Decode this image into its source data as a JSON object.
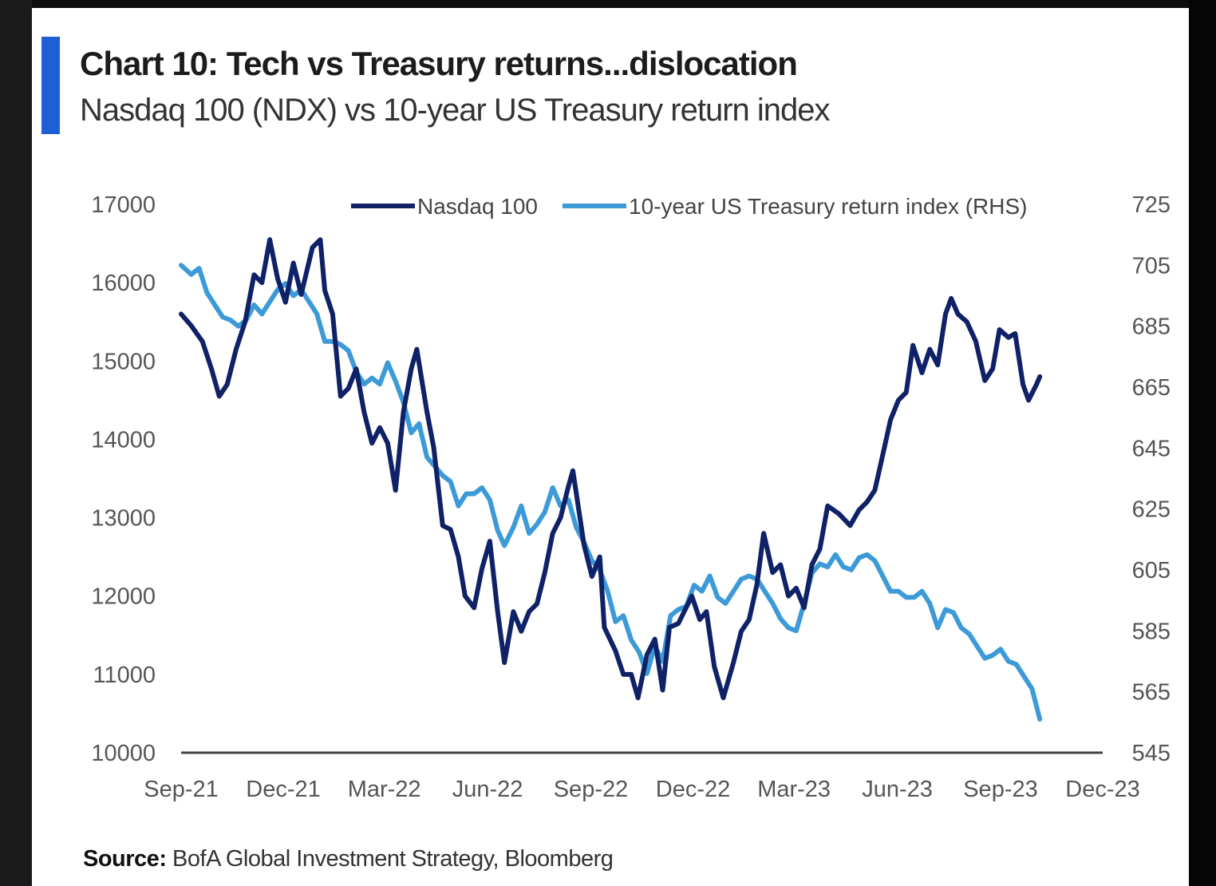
{
  "title": "Chart 10: Tech vs Treasury returns...dislocation",
  "subtitle": "Nasdaq 100 (NDX) vs 10-year US Treasury return index",
  "source_label": "Source:",
  "source_text": "BofA Global Investment Strategy, Bloomberg",
  "colors": {
    "nasdaq": "#0f2167",
    "treasury": "#3d9ad8",
    "accent": "#1f5fd6"
  },
  "chart_data": {
    "type": "line",
    "title": "Chart 10: Tech vs Treasury returns...dislocation",
    "subtitle": "Nasdaq 100 (NDX) vs 10-year US Treasury return index",
    "x_ticks": [
      "Sep-21",
      "Dec-21",
      "Mar-22",
      "Jun-22",
      "Sep-22",
      "Dec-22",
      "Mar-23",
      "Jun-23",
      "Sep-23",
      "Dec-23"
    ],
    "xlim": [
      "2021-09-01",
      "2023-12-01"
    ],
    "ylim_left": [
      10000,
      17000
    ],
    "yticks_left": [
      "17000",
      "16000",
      "15000",
      "14000",
      "13000",
      "12000",
      "11000",
      "10000"
    ],
    "ylim_right": [
      545,
      725
    ],
    "yticks_right": [
      "725",
      "705",
      "685",
      "665",
      "645",
      "625",
      "605",
      "585",
      "565",
      "545"
    ],
    "legend_position": "top-center",
    "series": [
      {
        "name": "Nasdaq 100",
        "axis": "left",
        "points": [
          [
            "2021-09-01",
            15600
          ],
          [
            "2021-09-10",
            15450
          ],
          [
            "2021-09-20",
            15250
          ],
          [
            "2021-09-28",
            14900
          ],
          [
            "2021-10-05",
            14550
          ],
          [
            "2021-10-12",
            14700
          ],
          [
            "2021-10-20",
            15150
          ],
          [
            "2021-10-28",
            15500
          ],
          [
            "2021-11-05",
            16100
          ],
          [
            "2021-11-12",
            16000
          ],
          [
            "2021-11-19",
            16550
          ],
          [
            "2021-11-26",
            16050
          ],
          [
            "2021-12-03",
            15750
          ],
          [
            "2021-12-10",
            16250
          ],
          [
            "2021-12-17",
            15850
          ],
          [
            "2021-12-27",
            16450
          ],
          [
            "2022-01-03",
            16550
          ],
          [
            "2022-01-07",
            15900
          ],
          [
            "2022-01-14",
            15600
          ],
          [
            "2022-01-21",
            14550
          ],
          [
            "2022-01-28",
            14650
          ],
          [
            "2022-02-04",
            14900
          ],
          [
            "2022-02-11",
            14350
          ],
          [
            "2022-02-18",
            13950
          ],
          [
            "2022-02-25",
            14150
          ],
          [
            "2022-03-04",
            13950
          ],
          [
            "2022-03-11",
            13350
          ],
          [
            "2022-03-18",
            14350
          ],
          [
            "2022-03-25",
            14900
          ],
          [
            "2022-03-30",
            15150
          ],
          [
            "2022-04-08",
            14350
          ],
          [
            "2022-04-14",
            13900
          ],
          [
            "2022-04-22",
            12900
          ],
          [
            "2022-04-29",
            12850
          ],
          [
            "2022-05-06",
            12500
          ],
          [
            "2022-05-12",
            12000
          ],
          [
            "2022-05-20",
            11850
          ],
          [
            "2022-05-27",
            12350
          ],
          [
            "2022-06-03",
            12700
          ],
          [
            "2022-06-10",
            11800
          ],
          [
            "2022-06-16",
            11150
          ],
          [
            "2022-06-24",
            11800
          ],
          [
            "2022-07-01",
            11550
          ],
          [
            "2022-07-08",
            11800
          ],
          [
            "2022-07-15",
            11900
          ],
          [
            "2022-07-22",
            12300
          ],
          [
            "2022-07-29",
            12800
          ],
          [
            "2022-08-05",
            13000
          ],
          [
            "2022-08-12",
            13400
          ],
          [
            "2022-08-16",
            13600
          ],
          [
            "2022-08-26",
            12650
          ],
          [
            "2022-09-02",
            12250
          ],
          [
            "2022-09-09",
            12500
          ],
          [
            "2022-09-13",
            11600
          ],
          [
            "2022-09-23",
            11300
          ],
          [
            "2022-09-30",
            11000
          ],
          [
            "2022-10-07",
            11000
          ],
          [
            "2022-10-13",
            10700
          ],
          [
            "2022-10-21",
            11250
          ],
          [
            "2022-10-28",
            11450
          ],
          [
            "2022-11-04",
            10800
          ],
          [
            "2022-11-10",
            11600
          ],
          [
            "2022-11-18",
            11650
          ],
          [
            "2022-11-30",
            12000
          ],
          [
            "2022-12-07",
            11700
          ],
          [
            "2022-12-13",
            11800
          ],
          [
            "2022-12-20",
            11100
          ],
          [
            "2022-12-28",
            10700
          ],
          [
            "2023-01-06",
            11150
          ],
          [
            "2023-01-13",
            11550
          ],
          [
            "2023-01-20",
            11700
          ],
          [
            "2023-01-27",
            12150
          ],
          [
            "2023-02-02",
            12800
          ],
          [
            "2023-02-10",
            12300
          ],
          [
            "2023-02-17",
            12400
          ],
          [
            "2023-02-24",
            12000
          ],
          [
            "2023-03-03",
            12100
          ],
          [
            "2023-03-10",
            11850
          ],
          [
            "2023-03-17",
            12400
          ],
          [
            "2023-03-24",
            12600
          ],
          [
            "2023-03-31",
            13150
          ],
          [
            "2023-04-10",
            13050
          ],
          [
            "2023-04-20",
            12900
          ],
          [
            "2023-04-28",
            13100
          ],
          [
            "2023-05-05",
            13200
          ],
          [
            "2023-05-12",
            13350
          ],
          [
            "2023-05-19",
            13800
          ],
          [
            "2023-05-26",
            14250
          ],
          [
            "2023-06-02",
            14500
          ],
          [
            "2023-06-09",
            14600
          ],
          [
            "2023-06-15",
            15200
          ],
          [
            "2023-06-23",
            14850
          ],
          [
            "2023-06-30",
            15150
          ],
          [
            "2023-07-07",
            14950
          ],
          [
            "2023-07-14",
            15600
          ],
          [
            "2023-07-19",
            15800
          ],
          [
            "2023-07-25",
            15600
          ],
          [
            "2023-08-02",
            15500
          ],
          [
            "2023-08-10",
            15250
          ],
          [
            "2023-08-18",
            14750
          ],
          [
            "2023-08-25",
            14900
          ],
          [
            "2023-08-31",
            15400
          ],
          [
            "2023-09-08",
            15300
          ],
          [
            "2023-09-14",
            15350
          ],
          [
            "2023-09-21",
            14700
          ],
          [
            "2023-09-26",
            14500
          ],
          [
            "2023-10-03",
            14700
          ],
          [
            "2023-10-06",
            14800
          ]
        ]
      },
      {
        "name": "10-year US Treasury return index (RHS)",
        "axis": "right",
        "points": [
          [
            "2021-09-01",
            705
          ],
          [
            "2021-09-10",
            702
          ],
          [
            "2021-09-17",
            704
          ],
          [
            "2021-09-24",
            696
          ],
          [
            "2021-10-01",
            692
          ],
          [
            "2021-10-08",
            688
          ],
          [
            "2021-10-15",
            687
          ],
          [
            "2021-10-22",
            685
          ],
          [
            "2021-10-29",
            687
          ],
          [
            "2021-11-05",
            692
          ],
          [
            "2021-11-12",
            689
          ],
          [
            "2021-11-19",
            693
          ],
          [
            "2021-11-26",
            697
          ],
          [
            "2021-12-03",
            699
          ],
          [
            "2021-12-10",
            695
          ],
          [
            "2021-12-17",
            697
          ],
          [
            "2021-12-24",
            693
          ],
          [
            "2021-12-31",
            689
          ],
          [
            "2022-01-07",
            680
          ],
          [
            "2022-01-14",
            680
          ],
          [
            "2022-01-21",
            679
          ],
          [
            "2022-01-28",
            677
          ],
          [
            "2022-02-04",
            670
          ],
          [
            "2022-02-11",
            666
          ],
          [
            "2022-02-18",
            668
          ],
          [
            "2022-02-25",
            666
          ],
          [
            "2022-03-04",
            673
          ],
          [
            "2022-03-11",
            667
          ],
          [
            "2022-03-18",
            660
          ],
          [
            "2022-03-25",
            650
          ],
          [
            "2022-04-01",
            653
          ],
          [
            "2022-04-08",
            642
          ],
          [
            "2022-04-15",
            639
          ],
          [
            "2022-04-22",
            636
          ],
          [
            "2022-04-29",
            634
          ],
          [
            "2022-05-06",
            626
          ],
          [
            "2022-05-13",
            630
          ],
          [
            "2022-05-20",
            630
          ],
          [
            "2022-05-27",
            632
          ],
          [
            "2022-06-03",
            628
          ],
          [
            "2022-06-10",
            618
          ],
          [
            "2022-06-16",
            613
          ],
          [
            "2022-06-24",
            619
          ],
          [
            "2022-07-01",
            626
          ],
          [
            "2022-07-08",
            617
          ],
          [
            "2022-07-15",
            620
          ],
          [
            "2022-07-22",
            624
          ],
          [
            "2022-07-29",
            632
          ],
          [
            "2022-08-05",
            626
          ],
          [
            "2022-08-12",
            628
          ],
          [
            "2022-08-19",
            619
          ],
          [
            "2022-08-26",
            614
          ],
          [
            "2022-09-02",
            608
          ],
          [
            "2022-09-09",
            605
          ],
          [
            "2022-09-16",
            598
          ],
          [
            "2022-09-23",
            588
          ],
          [
            "2022-09-30",
            590
          ],
          [
            "2022-10-07",
            582
          ],
          [
            "2022-10-14",
            578
          ],
          [
            "2022-10-21",
            571
          ],
          [
            "2022-10-28",
            580
          ],
          [
            "2022-11-04",
            575
          ],
          [
            "2022-11-11",
            590
          ],
          [
            "2022-11-18",
            592
          ],
          [
            "2022-11-25",
            593
          ],
          [
            "2022-12-02",
            600
          ],
          [
            "2022-12-09",
            598
          ],
          [
            "2022-12-16",
            603
          ],
          [
            "2022-12-23",
            596
          ],
          [
            "2022-12-30",
            594
          ],
          [
            "2023-01-06",
            598
          ],
          [
            "2023-01-13",
            602
          ],
          [
            "2023-01-20",
            603
          ],
          [
            "2023-01-27",
            602
          ],
          [
            "2023-02-03",
            598
          ],
          [
            "2023-02-10",
            594
          ],
          [
            "2023-02-17",
            589
          ],
          [
            "2023-02-24",
            586
          ],
          [
            "2023-03-03",
            585
          ],
          [
            "2023-03-10",
            594
          ],
          [
            "2023-03-17",
            604
          ],
          [
            "2023-03-24",
            607
          ],
          [
            "2023-03-31",
            606
          ],
          [
            "2023-04-07",
            610
          ],
          [
            "2023-04-14",
            606
          ],
          [
            "2023-04-21",
            605
          ],
          [
            "2023-04-28",
            609
          ],
          [
            "2023-05-05",
            610
          ],
          [
            "2023-05-12",
            608
          ],
          [
            "2023-05-19",
            603
          ],
          [
            "2023-05-26",
            598
          ],
          [
            "2023-06-02",
            598
          ],
          [
            "2023-06-09",
            596
          ],
          [
            "2023-06-16",
            596
          ],
          [
            "2023-06-23",
            598
          ],
          [
            "2023-06-30",
            594
          ],
          [
            "2023-07-07",
            586
          ],
          [
            "2023-07-14",
            592
          ],
          [
            "2023-07-21",
            591
          ],
          [
            "2023-07-28",
            586
          ],
          [
            "2023-08-04",
            584
          ],
          [
            "2023-08-11",
            580
          ],
          [
            "2023-08-18",
            576
          ],
          [
            "2023-08-25",
            577
          ],
          [
            "2023-09-01",
            579
          ],
          [
            "2023-09-08",
            575
          ],
          [
            "2023-09-15",
            574
          ],
          [
            "2023-09-22",
            570
          ],
          [
            "2023-09-29",
            566
          ],
          [
            "2023-10-06",
            556
          ]
        ]
      }
    ]
  }
}
